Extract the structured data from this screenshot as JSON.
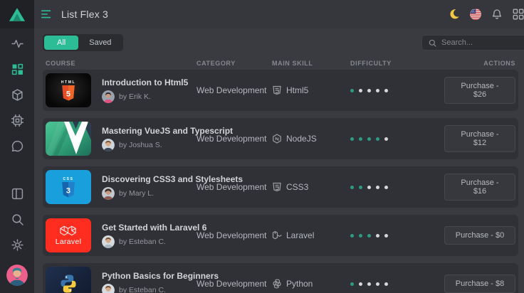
{
  "topbar": {
    "title": "List Flex 3",
    "icons": [
      "menu-icon",
      "moon-icon",
      "us-flag-icon",
      "bell-icon",
      "apps-grid-icon"
    ]
  },
  "sidebar": {
    "logo_icon": "triangle-logo",
    "items": [
      {
        "icon": "activity-icon",
        "active": false
      },
      {
        "icon": "grid-icon",
        "active": true
      },
      {
        "icon": "box-icon",
        "active": false
      },
      {
        "icon": "cpu-icon",
        "active": false
      },
      {
        "icon": "chat-icon",
        "active": false
      }
    ],
    "bottom_items": [
      {
        "icon": "layout-icon"
      },
      {
        "icon": "search-icon"
      },
      {
        "icon": "settings-icon"
      }
    ],
    "user": {
      "icon": "user-avatar"
    }
  },
  "tabs": {
    "all": "All",
    "saved": "Saved",
    "active": "All"
  },
  "search": {
    "placeholder": "Search...",
    "icon": "search-icon",
    "value": ""
  },
  "table": {
    "headers": {
      "course": "COURSE",
      "category": "CATEGORY",
      "skill": "MAIN SKILL",
      "difficulty": "DIFFICULTY",
      "actions": "ACTIONS"
    },
    "rows": [
      {
        "title": "Introduction to Html5",
        "author": "by Erik K.",
        "category": "Web Development",
        "skill": "Html5",
        "thumb_icon": "html5-logo",
        "skill_icon": "html5-shield-icon",
        "difficulty": 1,
        "difficulty_max": 5,
        "action": "Purchase - $26"
      },
      {
        "title": "Mastering VueJS and Typescript",
        "author": "by Joshua S.",
        "category": "Web Development",
        "skill": "NodeJS",
        "thumb_icon": "vuejs-logo",
        "skill_icon": "nodejs-hexagon-icon",
        "difficulty": 4,
        "difficulty_max": 5,
        "action": "Purchase - $12"
      },
      {
        "title": "Discovering CSS3 and Stylesheets",
        "author": "by Mary L.",
        "category": "Web Development",
        "skill": "CSS3",
        "thumb_icon": "css3-logo",
        "skill_icon": "css3-shield-icon",
        "difficulty": 2,
        "difficulty_max": 5,
        "action": "Purchase - $16"
      },
      {
        "title": "Get Started with Laravel 6",
        "author": "by Esteban C.",
        "category": "Web Development",
        "skill": "Laravel",
        "thumb_icon": "laravel-logo",
        "skill_icon": "laravel-mark-icon",
        "difficulty": 3,
        "difficulty_max": 5,
        "action": "Purchase - $0"
      },
      {
        "title": "Python Basics for Beginners",
        "author": "by Esteban C.",
        "category": "Web Development",
        "skill": "Python",
        "thumb_icon": "python-logo",
        "skill_icon": "python-mark-icon",
        "difficulty": 1,
        "difficulty_max": 5,
        "action": "Purchase - $8"
      }
    ]
  },
  "colors": {
    "accent": "#2dbd96",
    "dot_active": "#2d9c80",
    "dot_inactive": "#d6d7db",
    "sidebar_bg": "#26282d",
    "card_bg": "#2f3136",
    "content_bg": "#393b40"
  }
}
